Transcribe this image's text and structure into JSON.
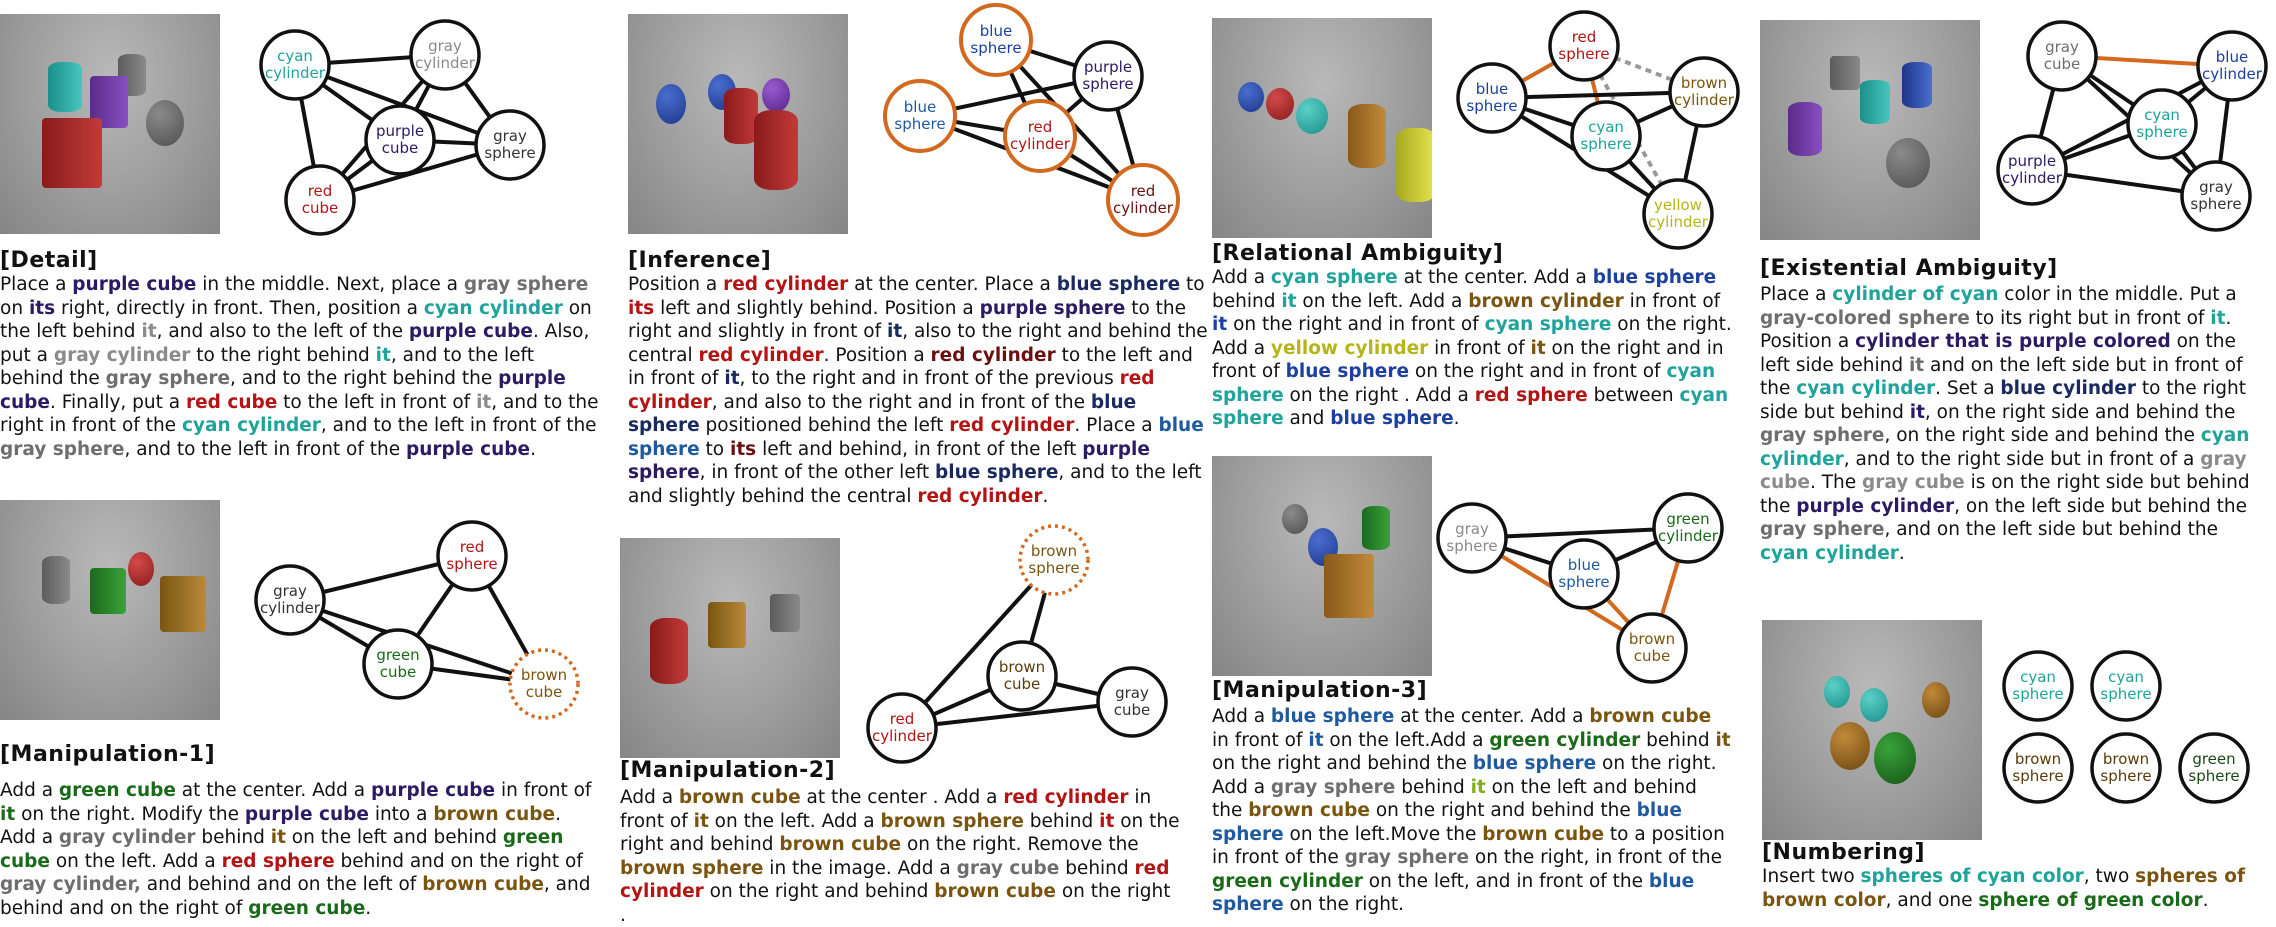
{
  "panels": {
    "detail": {
      "title": "[Detail]",
      "nodes": [
        "cyan cylinder",
        "gray cylinder",
        "purple cube",
        "gray sphere",
        "red cube"
      ],
      "text": [
        {
          "t": "Place a "
        },
        {
          "t": "purple cube",
          "c": "purple"
        },
        {
          "t": " in the middle. Next, place a "
        },
        {
          "t": "gray sphere",
          "c": "gray2"
        },
        {
          "t": " on "
        },
        {
          "t": "its",
          "c": "purple"
        },
        {
          "t": " right, directly in front. Then, position a "
        },
        {
          "t": "cyan cylinder",
          "c": "cyan"
        },
        {
          "t": " on the left behind "
        },
        {
          "t": "it",
          "c": "gray"
        },
        {
          "t": ", and also to the left of the "
        },
        {
          "t": "purple cube",
          "c": "purple"
        },
        {
          "t": ". Also, put a "
        },
        {
          "t": "gray cylinder",
          "c": "gray"
        },
        {
          "t": " to the right behind "
        },
        {
          "t": "it",
          "c": "cyan"
        },
        {
          "t": ", and to the left behind the "
        },
        {
          "t": "gray sphere",
          "c": "gray2"
        },
        {
          "t": ", and to the right behind the "
        },
        {
          "t": "purple cube",
          "c": "purple"
        },
        {
          "t": ". Finally, put a "
        },
        {
          "t": "red cube",
          "c": "red"
        },
        {
          "t": " to the left in front of "
        },
        {
          "t": "it",
          "c": "gray"
        },
        {
          "t": ", and to the right in front of the "
        },
        {
          "t": "cyan cylinder",
          "c": "cyan"
        },
        {
          "t": ", and to the left in front of the "
        },
        {
          "t": "gray sphere",
          "c": "gray2"
        },
        {
          "t": ", and to the left in front of the "
        },
        {
          "t": "purple cube",
          "c": "purple"
        },
        {
          "t": "."
        }
      ]
    },
    "inference": {
      "title": "[Inference]",
      "nodes": [
        "blue sphere",
        "purple sphere",
        "blue sphere",
        "red cylinder",
        "red cylinder"
      ],
      "text": [
        {
          "t": "Position a "
        },
        {
          "t": "red cylinder",
          "c": "red"
        },
        {
          "t": " at the center. Place a "
        },
        {
          "t": "blue sphere",
          "c": "navy"
        },
        {
          "t": " to "
        },
        {
          "t": "its",
          "c": "red"
        },
        {
          "t": " left and slightly behind. Position a "
        },
        {
          "t": "purple sphere",
          "c": "purple"
        },
        {
          "t": " to the right and slightly in front of "
        },
        {
          "t": "it",
          "c": "navy"
        },
        {
          "t": ", also to the right and behind the central "
        },
        {
          "t": "red cylinder",
          "c": "red"
        },
        {
          "t": ". Position a "
        },
        {
          "t": "red cylinder",
          "c": "darkred"
        },
        {
          "t": " to the left and in front of "
        },
        {
          "t": "it",
          "c": "navy"
        },
        {
          "t": ", to the right and in front of the previous "
        },
        {
          "t": "red cylinder",
          "c": "red"
        },
        {
          "t": ", and also to the right and in front of the "
        },
        {
          "t": "blue sphere",
          "c": "navy"
        },
        {
          "t": " positioned behind the left "
        },
        {
          "t": "red cylinder",
          "c": "red"
        },
        {
          "t": ". Place a "
        },
        {
          "t": "blue sphere",
          "c": "lblue"
        },
        {
          "t": " to "
        },
        {
          "t": "its",
          "c": "darkred"
        },
        {
          "t": " left and behind, in front of the left "
        },
        {
          "t": "purple sphere",
          "c": "purple"
        },
        {
          "t": ", in front of the other left "
        },
        {
          "t": "blue sphere",
          "c": "navy"
        },
        {
          "t": ", and to the left and slightly behind the central "
        },
        {
          "t": "red cylinder",
          "c": "red"
        },
        {
          "t": "."
        }
      ]
    },
    "relational": {
      "title": "[Relational Ambiguity]",
      "nodes": [
        "red sphere",
        "brown cylinder",
        "blue sphere",
        "cyan sphere",
        "yellow cylinder"
      ],
      "text": [
        {
          "t": "Add a "
        },
        {
          "t": "cyan sphere",
          "c": "cyan"
        },
        {
          "t": " at the center. Add a "
        },
        {
          "t": "blue sphere",
          "c": "blue"
        },
        {
          "t": " behind "
        },
        {
          "t": "it",
          "c": "cyan"
        },
        {
          "t": " on the left. Add a "
        },
        {
          "t": "brown cylinder",
          "c": "brown"
        },
        {
          "t": " in front of "
        },
        {
          "t": "it",
          "c": "blue"
        },
        {
          "t": " on the right and in front of "
        },
        {
          "t": "cyan sphere",
          "c": "cyan"
        },
        {
          "t": " on the right. Add a "
        },
        {
          "t": "yellow cylinder",
          "c": "yellow"
        },
        {
          "t": " in front of "
        },
        {
          "t": "it",
          "c": "brown"
        },
        {
          "t": " on the right and in front of "
        },
        {
          "t": "blue sphere",
          "c": "blue"
        },
        {
          "t": " on the right and in front of "
        },
        {
          "t": "cyan sphere",
          "c": "cyan"
        },
        {
          "t": " on the right . Add a "
        },
        {
          "t": "red sphere",
          "c": "red"
        },
        {
          "t": " between "
        },
        {
          "t": "cyan sphere",
          "c": "cyan"
        },
        {
          "t": " and "
        },
        {
          "t": "blue sphere",
          "c": "blue"
        },
        {
          "t": "."
        }
      ]
    },
    "existential": {
      "title": "[Existential Ambiguity]",
      "nodes": [
        "gray cube",
        "blue cylinder",
        "cyan sphere",
        "purple cylinder",
        "gray sphere"
      ],
      "text": [
        {
          "t": "Place a "
        },
        {
          "t": "cylinder of cyan",
          "c": "cyan"
        },
        {
          "t": " color in the middle. Put a "
        },
        {
          "t": "gray-colored sphere",
          "c": "gray2"
        },
        {
          "t": " to its right but in front of "
        },
        {
          "t": "it",
          "c": "cyan"
        },
        {
          "t": ". Position a "
        },
        {
          "t": "cylinder that is purple colored",
          "c": "purple"
        },
        {
          "t": " on the left side behind "
        },
        {
          "t": "it",
          "c": "gray2"
        },
        {
          "t": " and on the left side but in front of the "
        },
        {
          "t": "cyan cylinder",
          "c": "cyan"
        },
        {
          "t": ". Set a "
        },
        {
          "t": "blue cylinder",
          "c": "navy"
        },
        {
          "t": " to the right side but behind "
        },
        {
          "t": "it",
          "c": "purple"
        },
        {
          "t": ", on the right side and behind the "
        },
        {
          "t": "gray sphere",
          "c": "gray2"
        },
        {
          "t": ", on the right side and behind the "
        },
        {
          "t": "cyan cylinder",
          "c": "cyan"
        },
        {
          "t": ", and to the right side but in front of a "
        },
        {
          "t": "gray cube",
          "c": "gray"
        },
        {
          "t": ". The "
        },
        {
          "t": "gray cube",
          "c": "gray"
        },
        {
          "t": " is on the right side but behind the "
        },
        {
          "t": "purple cylinder",
          "c": "purple"
        },
        {
          "t": ", on the left side but behind the "
        },
        {
          "t": "gray sphere",
          "c": "gray2"
        },
        {
          "t": ", and on the left side but behind the "
        },
        {
          "t": "cyan cylinder",
          "c": "cyan"
        },
        {
          "t": "."
        }
      ]
    },
    "manip1": {
      "title": "[Manipulation-1]",
      "nodes": [
        "red sphere",
        "gray cylinder",
        "green cube",
        "brown cube"
      ],
      "text": [
        {
          "t": "Add a "
        },
        {
          "t": "green cube",
          "c": "green"
        },
        {
          "t": " at the center. Add a "
        },
        {
          "t": "purple cube",
          "c": "purple"
        },
        {
          "t": " in front of "
        },
        {
          "t": "it",
          "c": "green"
        },
        {
          "t": " on the right. Modify the "
        },
        {
          "t": "purple cube",
          "c": "purple"
        },
        {
          "t": " into a "
        },
        {
          "t": "brown cube",
          "c": "brown"
        },
        {
          "t": ". Add a "
        },
        {
          "t": "gray cylinder",
          "c": "gray2"
        },
        {
          "t": " behind "
        },
        {
          "t": "it",
          "c": "brown"
        },
        {
          "t": " on the left and behind "
        },
        {
          "t": "green cube",
          "c": "green"
        },
        {
          "t": " on the left. Add a "
        },
        {
          "t": "red sphere",
          "c": "red"
        },
        {
          "t": " behind and on the right of "
        },
        {
          "t": "gray cylinder,",
          "c": "gray2"
        },
        {
          "t": " and behind and on the left of "
        },
        {
          "t": "brown cube",
          "c": "brown"
        },
        {
          "t": ", and behind and on the right of "
        },
        {
          "t": "green cube",
          "c": "green"
        },
        {
          "t": "."
        }
      ]
    },
    "manip2": {
      "title": "[Manipulation-2]",
      "nodes": [
        "brown sphere",
        "brown cube",
        "gray cube",
        "red cylinder"
      ],
      "text": [
        {
          "t": "Add a "
        },
        {
          "t": "brown cube",
          "c": "brown"
        },
        {
          "t": " at the center . Add a "
        },
        {
          "t": "red cylinder",
          "c": "red"
        },
        {
          "t": " in front of "
        },
        {
          "t": "it",
          "c": "brown"
        },
        {
          "t": " on the left. Add a "
        },
        {
          "t": "brown sphere",
          "c": "brown"
        },
        {
          "t": " behind "
        },
        {
          "t": "it",
          "c": "red"
        },
        {
          "t": " on the right and behind "
        },
        {
          "t": "brown cube",
          "c": "brown"
        },
        {
          "t": " on the right. Remove the "
        },
        {
          "t": "brown sphere",
          "c": "brown"
        },
        {
          "t": " in the image. Add a "
        },
        {
          "t": "gray cube",
          "c": "gray2"
        },
        {
          "t": " behind "
        },
        {
          "t": "red cylinder",
          "c": "red"
        },
        {
          "t": " on the right and behind "
        },
        {
          "t": "brown cube",
          "c": "brown"
        },
        {
          "t": " on the right ."
        }
      ]
    },
    "manip3": {
      "title": "[Manipulation-3]",
      "nodes": [
        "gray sphere",
        "green cylinder",
        "blue sphere",
        "brown cube"
      ],
      "text": [
        {
          "t": "Add a "
        },
        {
          "t": "blue sphere",
          "c": "lblue"
        },
        {
          "t": " at the center. Add a "
        },
        {
          "t": "brown cube",
          "c": "brown"
        },
        {
          "t": " in front of "
        },
        {
          "t": "it",
          "c": "lblue"
        },
        {
          "t": " on the left.Add a "
        },
        {
          "t": "green cylinder",
          "c": "green"
        },
        {
          "t": " behind "
        },
        {
          "t": "it",
          "c": "brown"
        },
        {
          "t": " on the right and behind the "
        },
        {
          "t": "blue sphere",
          "c": "lblue"
        },
        {
          "t": " on the right. Add a "
        },
        {
          "t": "gray sphere",
          "c": "gray2"
        },
        {
          "t": " behind "
        },
        {
          "t": "it",
          "c": "yg"
        },
        {
          "t": " on the left and behind the "
        },
        {
          "t": "brown cube",
          "c": "brown"
        },
        {
          "t": " on the right and behind the "
        },
        {
          "t": "blue sphere",
          "c": "lblue"
        },
        {
          "t": " on the left.Move the "
        },
        {
          "t": "brown cube",
          "c": "brown"
        },
        {
          "t": " to a position in front of the "
        },
        {
          "t": "gray sphere",
          "c": "gray2"
        },
        {
          "t": " on the right, in front of the "
        },
        {
          "t": "green cylinder",
          "c": "green"
        },
        {
          "t": " on the left, and in front of the "
        },
        {
          "t": "blue sphere",
          "c": "lblue"
        },
        {
          "t": " on the right."
        }
      ]
    },
    "numbering": {
      "title": "[Numbering]",
      "nodes": [
        "cyan sphere",
        "cyan sphere",
        "brown sphere",
        "brown sphere",
        "green sphere"
      ],
      "text": [
        {
          "t": "Insert two "
        },
        {
          "t": "spheres of cyan color",
          "c": "cyan"
        },
        {
          "t": ", two "
        },
        {
          "t": "spheres of brown color",
          "c": "brown"
        },
        {
          "t": ", and one "
        },
        {
          "t": "sphere of green color",
          "c": "green"
        },
        {
          "t": "."
        }
      ]
    }
  },
  "colors": {
    "purple": "#2c1a63",
    "gray": "#8a8a8a",
    "gray2": "#6e6e6e",
    "cyan": "#1fa39a",
    "red": "#b31414",
    "darkred": "#6a1010",
    "blue": "#1d3f9f",
    "navy": "#1a2a60",
    "brown": "#7a5510",
    "green": "#1a6a1a",
    "yellow": "#b5b51a",
    "lblue": "#1f5aa0",
    "yg": "#7fb01a",
    "highlight": "#d2691e"
  }
}
